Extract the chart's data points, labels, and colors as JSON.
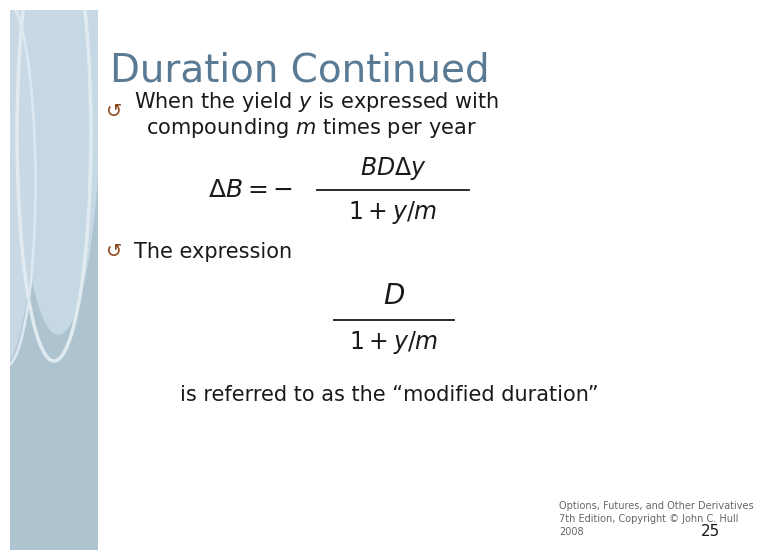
{
  "title": "Duration Continued",
  "title_color": "#5a7a94",
  "title_fontsize": 28,
  "bg_color": "#ffffff",
  "left_panel_color": "#adc4d0",
  "bullet_color": "#8B4513",
  "text_color": "#1a1a1a",
  "footer_text": "Options, Futures, and Other Derivatives\n7th Edition, Copyright © John C. Hull\n2008",
  "page_number": "25",
  "bullet_font": 16,
  "body_font": 15,
  "formula_font": 16
}
